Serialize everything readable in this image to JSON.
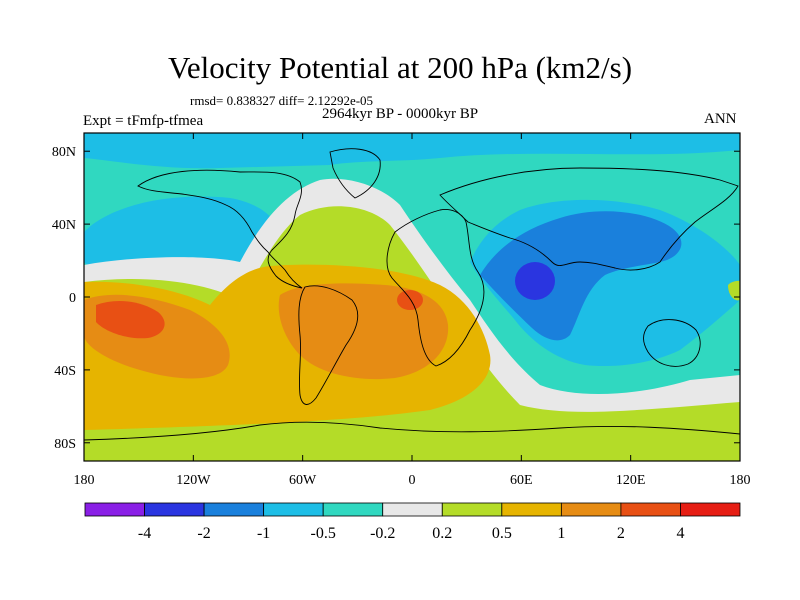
{
  "header": {
    "title": "Velocity Potential at 200 hPa (km2/s)",
    "stats": "rmsd= 0.838327 diff= 2.12292e-05",
    "experiment": "Expt = tFmfp-tfmea",
    "period": "2964kyr BP - 0000kyr BP",
    "season": "ANN"
  },
  "axes": {
    "lat_ticks": [
      {
        "value": 80,
        "label": "80N"
      },
      {
        "value": 40,
        "label": "40N"
      },
      {
        "value": 0,
        "label": "0"
      },
      {
        "value": -40,
        "label": "40S"
      },
      {
        "value": -80,
        "label": "80S"
      }
    ],
    "lon_ticks": [
      {
        "value": -180,
        "label": "180"
      },
      {
        "value": -120,
        "label": "120W"
      },
      {
        "value": -60,
        "label": "60W"
      },
      {
        "value": 0,
        "label": "0"
      },
      {
        "value": 60,
        "label": "60E"
      },
      {
        "value": 120,
        "label": "120E"
      },
      {
        "value": 180,
        "label": "180"
      }
    ],
    "lon_range": [
      -180,
      180
    ],
    "lat_range": [
      -90,
      90
    ]
  },
  "colorbar": {
    "colors": [
      "#8a1fe6",
      "#2a35e0",
      "#1a80dc",
      "#1dbee6",
      "#30d8c0",
      "#e8e8e8",
      "#b4dc28",
      "#e6b400",
      "#e68c14",
      "#e85014",
      "#e61e14"
    ],
    "labels": [
      "-4",
      "-2",
      "-1",
      "-0.5",
      "-0.2",
      "0.2",
      "0.5",
      "1",
      "2",
      "4"
    ]
  }
}
